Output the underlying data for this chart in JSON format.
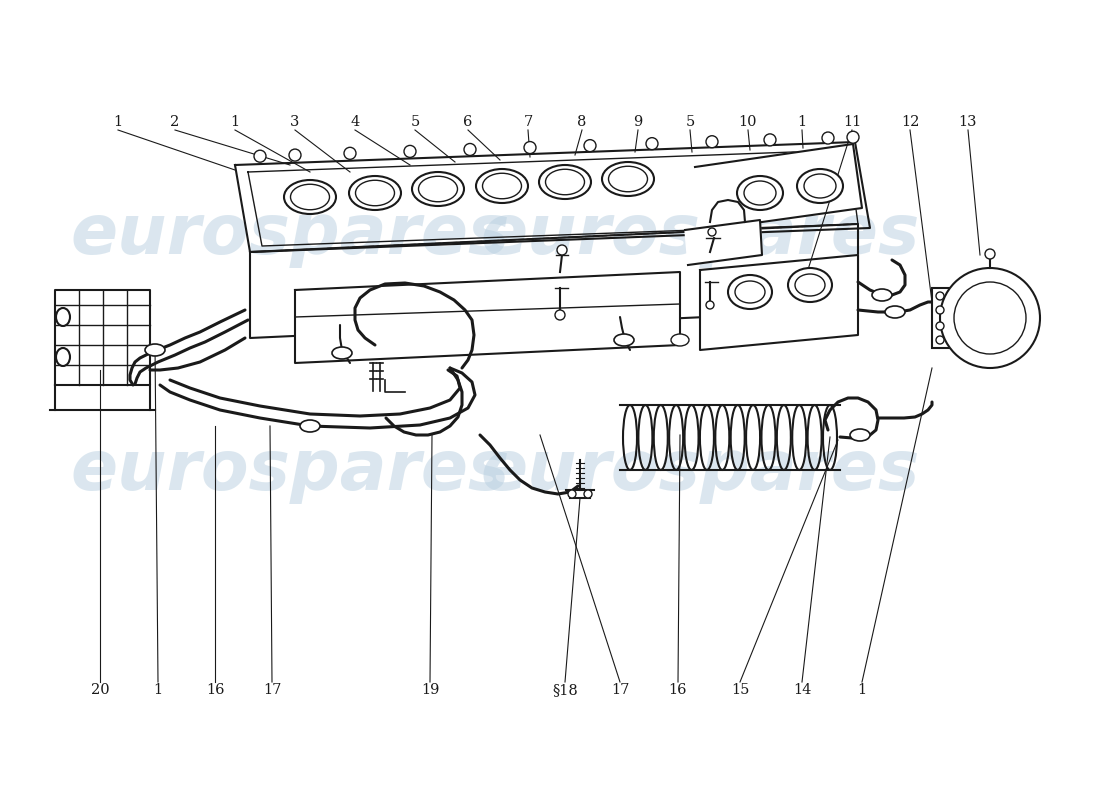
{
  "bg_color": "#ffffff",
  "line_color": "#1a1a1a",
  "lw_main": 1.5,
  "lw_thick": 2.2,
  "lw_thin": 1.0,
  "watermark_color": "#b8cfe0",
  "watermark_text": "eurospares",
  "top_labels": [
    [
      "1",
      118,
      678
    ],
    [
      "2",
      175,
      678
    ],
    [
      "1",
      235,
      678
    ],
    [
      "3",
      295,
      678
    ],
    [
      "4",
      355,
      678
    ],
    [
      "5",
      415,
      678
    ],
    [
      "6",
      468,
      678
    ],
    [
      "7",
      528,
      678
    ],
    [
      "8",
      582,
      678
    ],
    [
      "9",
      638,
      678
    ],
    [
      "5",
      690,
      678
    ],
    [
      "10",
      748,
      678
    ],
    [
      "1",
      802,
      678
    ],
    [
      "11",
      852,
      678
    ],
    [
      "12",
      910,
      678
    ],
    [
      "13",
      968,
      678
    ]
  ],
  "bot_labels": [
    [
      "20",
      100,
      110
    ],
    [
      "1",
      158,
      110
    ],
    [
      "16",
      215,
      110
    ],
    [
      "17",
      272,
      110
    ],
    [
      "19",
      430,
      110
    ],
    [
      "§18",
      565,
      110
    ],
    [
      "17",
      620,
      110
    ],
    [
      "16",
      678,
      110
    ],
    [
      "15",
      740,
      110
    ],
    [
      "14",
      802,
      110
    ],
    [
      "1",
      862,
      110
    ]
  ]
}
